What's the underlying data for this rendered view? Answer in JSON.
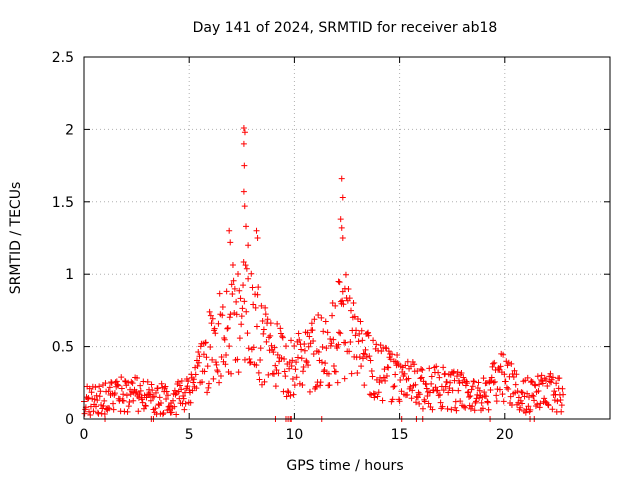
{
  "chart_data": {
    "type": "scatter",
    "title": "Day 141 of 2024, SRMTID for receiver ab18",
    "xlabel": "GPS time / hours",
    "ylabel": "SRMTID / TECUs",
    "xlim": [
      0,
      25
    ],
    "ylim": [
      0,
      2.5
    ],
    "xticks": [
      0,
      5,
      10,
      15,
      20
    ],
    "xtick_labels": [
      "0",
      "5",
      "10",
      "15",
      "20"
    ],
    "yticks": [
      0,
      0.5,
      1,
      1.5,
      2,
      2.5
    ],
    "ytick_labels": [
      "0",
      "0.5",
      "1",
      "1.5",
      "2",
      "2.5"
    ],
    "grid": true,
    "marker": "+",
    "color": "#ff0000",
    "series": [
      {
        "name": "SRMTID",
        "profile_x": [
          0,
          1,
          2,
          3,
          4,
          5,
          5.5,
          6,
          6.5,
          7,
          7.5,
          8,
          8.5,
          9,
          9.5,
          10,
          10.5,
          11,
          11.5,
          12,
          12.5,
          13,
          13.5,
          14,
          15,
          16,
          17,
          18,
          19,
          19.5,
          20,
          20.5,
          21,
          22,
          22.8
        ],
        "profile_y": [
          0.12,
          0.13,
          0.16,
          0.14,
          0.12,
          0.15,
          0.3,
          0.45,
          0.55,
          0.65,
          0.7,
          0.6,
          0.5,
          0.45,
          0.32,
          0.35,
          0.4,
          0.45,
          0.4,
          0.55,
          0.6,
          0.42,
          0.35,
          0.32,
          0.25,
          0.2,
          0.2,
          0.17,
          0.15,
          0.22,
          0.28,
          0.18,
          0.15,
          0.17,
          0.16
        ],
        "peaks": [
          {
            "x": 7.6,
            "y": 2.01
          },
          {
            "x": 7.65,
            "y": 1.98
          },
          {
            "x": 7.6,
            "y": 1.9
          },
          {
            "x": 7.62,
            "y": 1.75
          },
          {
            "x": 7.6,
            "y": 1.57
          },
          {
            "x": 7.64,
            "y": 1.47
          },
          {
            "x": 7.7,
            "y": 1.33
          },
          {
            "x": 6.9,
            "y": 1.3
          },
          {
            "x": 8.2,
            "y": 1.3
          },
          {
            "x": 8.25,
            "y": 1.25
          },
          {
            "x": 6.95,
            "y": 1.22
          },
          {
            "x": 7.8,
            "y": 1.2
          },
          {
            "x": 12.25,
            "y": 1.66
          },
          {
            "x": 12.3,
            "y": 1.53
          },
          {
            "x": 12.2,
            "y": 1.38
          },
          {
            "x": 12.25,
            "y": 1.32
          },
          {
            "x": 12.3,
            "y": 1.25
          },
          {
            "x": 12.1,
            "y": 0.95
          },
          {
            "x": 12.4,
            "y": 0.9
          }
        ],
        "zeros_x": [
          1.0,
          3.2,
          3.3,
          9.1,
          9.6,
          9.7,
          9.8,
          9.85,
          11.3,
          15.1,
          15.8,
          16.1,
          19.3,
          21.2,
          21.4
        ]
      }
    ]
  }
}
